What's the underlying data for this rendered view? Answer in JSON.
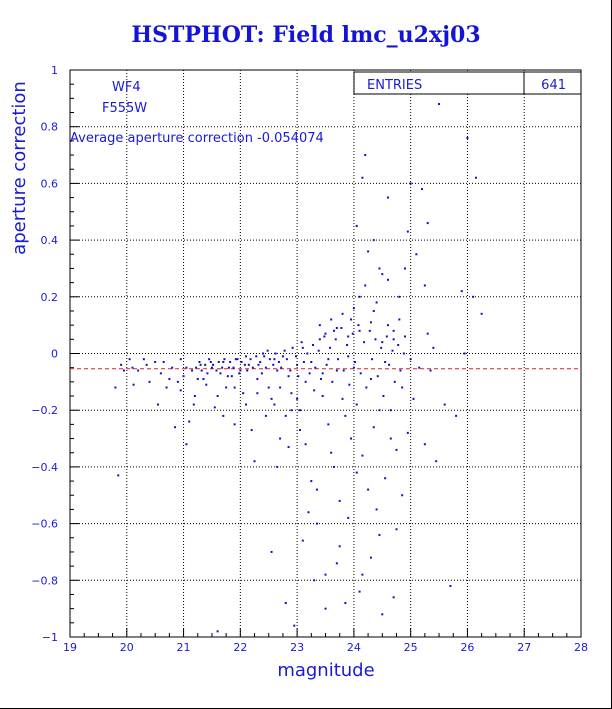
{
  "chart_data": {
    "type": "scatter",
    "title": "HSTPHOT: Field lmc_u2xj03",
    "xlabel": "magnitude",
    "ylabel": "aperture correction",
    "xlim": [
      19,
      28
    ],
    "ylim": [
      -1,
      1
    ],
    "x_ticks": [
      19,
      20,
      21,
      22,
      23,
      24,
      25,
      26,
      27,
      28
    ],
    "y_ticks": [
      -1,
      -0.8,
      -0.6,
      -0.4,
      -0.2,
      0,
      0.2,
      0.4,
      0.6,
      0.8,
      1
    ],
    "grid": true,
    "annotations": {
      "chip": "WF4",
      "filter": "F555W",
      "average": "Average aperture correction -0.054074",
      "entries_label": "ENTRIES",
      "entries_value": "641"
    },
    "reference_line": {
      "y": -0.054,
      "color": "#e02020",
      "style": "dashed"
    },
    "point_color": "#1010c0",
    "points": [
      [
        19.8,
        -0.12
      ],
      [
        19.85,
        -0.43
      ],
      [
        19.9,
        -0.04
      ],
      [
        19.95,
        -0.06
      ],
      [
        20.05,
        -0.02
      ],
      [
        20.1,
        -0.05
      ],
      [
        20.12,
        -0.11
      ],
      [
        20.2,
        -0.06
      ],
      [
        20.35,
        -0.04
      ],
      [
        20.5,
        -0.03
      ],
      [
        20.55,
        -0.18
      ],
      [
        20.6,
        -0.07
      ],
      [
        20.7,
        -0.12
      ],
      [
        20.8,
        -0.05
      ],
      [
        20.85,
        -0.26
      ],
      [
        20.9,
        -0.1
      ],
      [
        20.95,
        -0.02
      ],
      [
        21.0,
        -0.08
      ],
      [
        21.05,
        -0.32
      ],
      [
        21.1,
        -0.24
      ],
      [
        21.15,
        -0.06
      ],
      [
        21.2,
        -0.15
      ],
      [
        21.3,
        -0.04
      ],
      [
        21.35,
        -0.09
      ],
      [
        21.4,
        -0.11
      ],
      [
        21.45,
        -0.02
      ],
      [
        21.5,
        -0.05
      ],
      [
        21.55,
        -0.19
      ],
      [
        21.6,
        -0.98
      ],
      [
        21.65,
        -0.07
      ],
      [
        21.7,
        -0.03
      ],
      [
        21.75,
        -0.12
      ],
      [
        21.8,
        -0.05
      ],
      [
        21.85,
        -0.08
      ],
      [
        21.9,
        -0.25
      ],
      [
        21.95,
        -0.02
      ],
      [
        22.0,
        -0.06
      ],
      [
        22.05,
        -0.14
      ],
      [
        22.1,
        -0.01
      ],
      [
        22.15,
        -0.04
      ],
      [
        22.2,
        -0.27
      ],
      [
        22.25,
        -0.38
      ],
      [
        22.3,
        -0.09
      ],
      [
        22.35,
        -0.03
      ],
      [
        22.4,
        0.0
      ],
      [
        22.45,
        -0.05
      ],
      [
        22.5,
        -0.12
      ],
      [
        22.55,
        -0.7
      ],
      [
        22.6,
        -0.02
      ],
      [
        22.65,
        -0.06
      ],
      [
        22.7,
        -0.3
      ],
      [
        22.75,
        -0.01
      ],
      [
        22.8,
        -0.88
      ],
      [
        22.85,
        -0.08
      ],
      [
        22.9,
        -0.2
      ],
      [
        22.95,
        -0.96
      ],
      [
        23.0,
        -0.04
      ],
      [
        23.05,
        -0.27
      ],
      [
        23.1,
        0.02
      ],
      [
        23.15,
        -0.1
      ],
      [
        23.2,
        -0.56
      ],
      [
        23.25,
        -0.03
      ],
      [
        23.3,
        -0.13
      ],
      [
        23.35,
        -0.48
      ],
      [
        23.4,
        0.05
      ],
      [
        23.45,
        -0.07
      ],
      [
        23.5,
        -0.78
      ],
      [
        23.55,
        -0.02
      ],
      [
        23.6,
        -0.35
      ],
      [
        23.65,
        0.08
      ],
      [
        23.7,
        -0.06
      ],
      [
        23.75,
        -0.68
      ],
      [
        23.8,
        -0.16
      ],
      [
        23.85,
        -0.88
      ],
      [
        23.9,
        -0.01
      ],
      [
        23.95,
        0.12
      ],
      [
        24.0,
        -0.05
      ],
      [
        24.05,
        -0.42
      ],
      [
        24.1,
        0.2
      ],
      [
        24.15,
        -0.78
      ],
      [
        24.2,
        0.7
      ],
      [
        24.25,
        0.36
      ],
      [
        24.3,
        -0.09
      ],
      [
        24.35,
        0.15
      ],
      [
        24.4,
        -0.55
      ],
      [
        24.45,
        -0.2
      ],
      [
        24.5,
        0.28
      ],
      [
        24.55,
        -0.03
      ],
      [
        24.6,
        0.1
      ],
      [
        24.65,
        -0.3
      ],
      [
        24.7,
        0.05
      ],
      [
        24.75,
        -0.62
      ],
      [
        24.8,
        0.2
      ],
      [
        24.85,
        -0.12
      ],
      [
        24.9,
        0.3
      ],
      [
        24.95,
        0.43
      ],
      [
        25.0,
        -0.02
      ],
      [
        25.05,
        -0.16
      ],
      [
        25.1,
        0.35
      ],
      [
        25.15,
        -0.05
      ],
      [
        25.2,
        0.58
      ],
      [
        25.25,
        -0.32
      ],
      [
        25.3,
        0.07
      ],
      [
        25.35,
        -0.06
      ],
      [
        25.4,
        0.02
      ],
      [
        25.45,
        -0.38
      ],
      [
        25.5,
        0.88
      ],
      [
        25.6,
        -0.18
      ],
      [
        25.7,
        -0.82
      ],
      [
        25.8,
        -0.22
      ],
      [
        25.9,
        0.22
      ],
      [
        25.95,
        0.0
      ],
      [
        26.0,
        0.76
      ],
      [
        26.1,
        0.2
      ],
      [
        26.15,
        0.62
      ],
      [
        26.25,
        0.14
      ],
      [
        22.42,
        -0.01
      ],
      [
        22.48,
        0.01
      ],
      [
        22.52,
        -0.02
      ],
      [
        22.58,
        -0.04
      ],
      [
        22.62,
        0.0
      ],
      [
        22.68,
        -0.03
      ],
      [
        22.72,
        -0.05
      ],
      [
        22.78,
        0.01
      ],
      [
        22.82,
        -0.02
      ],
      [
        22.88,
        -0.06
      ],
      [
        22.92,
        0.02
      ],
      [
        22.98,
        -0.01
      ],
      [
        23.02,
        -0.08
      ],
      [
        23.08,
        0.04
      ],
      [
        23.12,
        -0.03
      ],
      [
        23.18,
        0.0
      ],
      [
        23.22,
        -0.07
      ],
      [
        23.28,
        0.03
      ],
      [
        23.32,
        -0.05
      ],
      [
        23.38,
        0.01
      ],
      [
        23.42,
        -0.09
      ],
      [
        23.48,
        0.06
      ],
      [
        23.52,
        -0.04
      ],
      [
        23.58,
        0.02
      ],
      [
        23.62,
        -0.1
      ],
      [
        23.68,
        0.05
      ],
      [
        23.72,
        -0.02
      ],
      [
        23.78,
        0.09
      ],
      [
        23.82,
        -0.06
      ],
      [
        23.88,
        0.03
      ],
      [
        23.92,
        -0.11
      ],
      [
        23.98,
        0.07
      ],
      [
        24.02,
        -0.03
      ],
      [
        24.08,
        0.1
      ],
      [
        24.12,
        -0.07
      ],
      [
        24.18,
        0.04
      ],
      [
        24.22,
        -0.12
      ],
      [
        24.28,
        0.08
      ],
      [
        24.32,
        -0.02
      ],
      [
        24.38,
        0.05
      ],
      [
        24.42,
        -0.08
      ],
      [
        24.48,
        0.02
      ],
      [
        24.52,
        -0.15
      ],
      [
        24.58,
        0.06
      ],
      [
        24.62,
        -0.04
      ],
      [
        24.68,
        0.01
      ],
      [
        24.72,
        -0.1
      ],
      [
        24.78,
        0.03
      ],
      [
        24.82,
        -0.06
      ],
      [
        24.88,
        0.0
      ],
      [
        21.82,
        -0.03
      ],
      [
        21.88,
        -0.05
      ],
      [
        21.92,
        -0.02
      ],
      [
        21.98,
        -0.07
      ],
      [
        22.02,
        -0.03
      ],
      [
        22.08,
        -0.04
      ],
      [
        22.12,
        -0.06
      ],
      [
        22.18,
        -0.02
      ],
      [
        22.22,
        -0.05
      ],
      [
        22.28,
        -0.01
      ],
      [
        22.32,
        -0.04
      ],
      [
        22.38,
        -0.07
      ],
      [
        21.52,
        -0.04
      ],
      [
        21.58,
        -0.06
      ],
      [
        21.62,
        -0.03
      ],
      [
        21.68,
        -0.05
      ],
      [
        21.72,
        -0.02
      ],
      [
        21.78,
        -0.08
      ],
      [
        21.22,
        -0.05
      ],
      [
        21.28,
        -0.03
      ],
      [
        21.32,
        -0.06
      ],
      [
        21.38,
        -0.04
      ],
      [
        21.42,
        -0.07
      ],
      [
        21.48,
        -0.03
      ],
      [
        23.05,
        -0.2
      ],
      [
        23.15,
        -0.32
      ],
      [
        23.25,
        -0.45
      ],
      [
        23.35,
        -0.6
      ],
      [
        23.45,
        -0.15
      ],
      [
        23.55,
        -0.25
      ],
      [
        23.65,
        -0.4
      ],
      [
        23.75,
        -0.52
      ],
      [
        23.85,
        -0.22
      ],
      [
        23.95,
        -0.3
      ],
      [
        24.05,
        -0.18
      ],
      [
        24.15,
        -0.36
      ],
      [
        24.25,
        -0.48
      ],
      [
        24.35,
        -0.26
      ],
      [
        24.45,
        -0.64
      ],
      [
        24.55,
        -0.44
      ],
      [
        24.65,
        -0.2
      ],
      [
        24.75,
        -0.34
      ],
      [
        24.85,
        -0.5
      ],
      [
        24.95,
        -0.28
      ],
      [
        22.6,
        -0.18
      ],
      [
        22.7,
        -0.12
      ],
      [
        22.8,
        -0.22
      ],
      [
        22.9,
        -0.14
      ],
      [
        23.0,
        -0.16
      ],
      [
        22.65,
        -0.4
      ],
      [
        22.85,
        -0.33
      ],
      [
        23.1,
        -0.66
      ],
      [
        23.3,
        -0.8
      ],
      [
        23.5,
        -0.9
      ],
      [
        23.7,
        -0.74
      ],
      [
        23.9,
        -0.58
      ],
      [
        24.1,
        -0.84
      ],
      [
        24.3,
        -0.72
      ],
      [
        24.5,
        -0.92
      ],
      [
        24.7,
        -0.86
      ],
      [
        23.4,
        0.1
      ],
      [
        23.6,
        0.12
      ],
      [
        23.8,
        0.14
      ],
      [
        24.0,
        0.16
      ],
      [
        24.2,
        0.24
      ],
      [
        24.4,
        0.18
      ],
      [
        24.6,
        0.26
      ],
      [
        24.8,
        0.12
      ],
      [
        23.5,
        0.07
      ],
      [
        23.7,
        0.09
      ],
      [
        23.9,
        0.06
      ],
      [
        24.1,
        0.08
      ],
      [
        24.3,
        0.11
      ],
      [
        24.5,
        0.04
      ],
      [
        24.7,
        0.08
      ],
      [
        24.9,
        0.06
      ],
      [
        24.35,
        0.4
      ],
      [
        24.15,
        0.62
      ],
      [
        24.45,
        0.3
      ],
      [
        24.6,
        0.55
      ],
      [
        24.05,
        0.45
      ],
      [
        25.0,
        0.6
      ],
      [
        25.3,
        0.46
      ],
      [
        25.25,
        0.24
      ],
      [
        20.3,
        -0.02
      ],
      [
        20.4,
        -0.1
      ],
      [
        20.65,
        -0.03
      ],
      [
        20.75,
        -0.09
      ],
      [
        20.95,
        -0.13
      ],
      [
        21.05,
        -0.05
      ],
      [
        21.18,
        -0.18
      ],
      [
        21.25,
        -0.09
      ],
      [
        21.6,
        -0.15
      ],
      [
        21.7,
        -0.22
      ],
      [
        21.9,
        -0.12
      ],
      [
        22.1,
        -0.18
      ],
      [
        22.3,
        -0.14
      ],
      [
        22.45,
        -0.22
      ],
      [
        22.55,
        -0.16
      ]
    ]
  }
}
